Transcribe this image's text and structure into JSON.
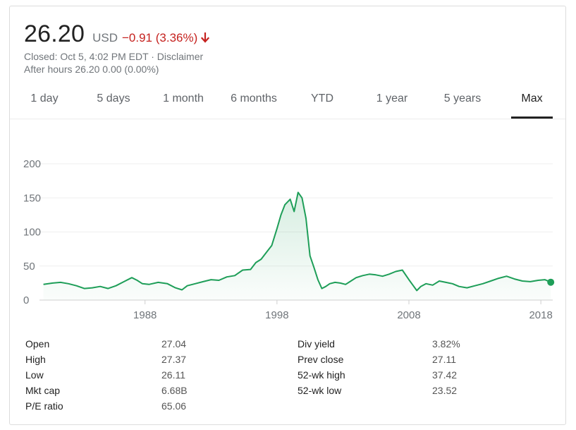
{
  "quote": {
    "price": "26.20",
    "currency": "USD",
    "change": "−0.91 (3.36%)",
    "closed_text": "Closed: Oct 5, 4:02 PM EDT · Disclaimer",
    "after_hours_text": "After hours 26.20 0.00 (0.00%)",
    "down_color": "#c5221f",
    "arrow_icon": "down-arrow-icon"
  },
  "tabs": [
    {
      "label": "1 day"
    },
    {
      "label": "5 days"
    },
    {
      "label": "1 month"
    },
    {
      "label": "6 months"
    },
    {
      "label": "YTD"
    },
    {
      "label": "1 year"
    },
    {
      "label": "5 years"
    },
    {
      "label": "Max",
      "active": true
    }
  ],
  "chart_data": {
    "type": "area",
    "line_color": "#1e9e58",
    "ylim": [
      0,
      200
    ],
    "y_ticks": [
      "200",
      "150",
      "100",
      "50",
      "0"
    ],
    "x_ticks": [
      "1988",
      "1998",
      "2008",
      "2018"
    ],
    "x_tick_values": [
      1988,
      1998,
      2008,
      2018
    ],
    "xlim": [
      1980,
      2018.9
    ],
    "grid": true,
    "series": [
      {
        "x": [
          1980.3,
          1981,
          1981.6,
          1982.2,
          1982.8,
          1983.4,
          1984,
          1984.6,
          1985.2,
          1985.8,
          1986.4,
          1987,
          1987.4,
          1987.8,
          1988.3,
          1989,
          1989.7,
          1990.3,
          1990.8,
          1991.2,
          1991.8,
          1992.4,
          1993,
          1993.6,
          1994.2,
          1994.8,
          1995.4,
          1996,
          1996.4,
          1996.8,
          1997.2,
          1997.6,
          1998,
          1998.3,
          1998.6,
          1999,
          1999.3,
          1999.6,
          1999.9,
          2000.2,
          2000.5,
          2000.8,
          2001.1,
          2001.4,
          2001.7,
          2002,
          2002.4,
          2002.8,
          2003.2,
          2003.6,
          2004,
          2004.5,
          2005,
          2005.5,
          2006,
          2006.5,
          2007,
          2007.5,
          2008,
          2008.3,
          2008.6,
          2008.9,
          2009.3,
          2009.8,
          2010.3,
          2010.8,
          2011.3,
          2011.8,
          2012.4,
          2013,
          2013.6,
          2014.2,
          2014.8,
          2015.4,
          2016,
          2016.6,
          2017.2,
          2017.8,
          2018.3,
          2018.75
        ],
        "y": [
          23,
          25,
          26,
          24,
          21,
          17,
          18,
          20,
          17,
          21,
          27,
          33,
          29,
          24,
          23,
          26,
          24,
          18,
          15,
          21,
          24,
          27,
          30,
          29,
          34,
          36,
          44,
          45,
          55,
          60,
          70,
          80,
          105,
          125,
          140,
          148,
          130,
          158,
          150,
          120,
          65,
          48,
          30,
          17,
          20,
          24,
          26,
          25,
          23,
          28,
          33,
          36,
          38,
          37,
          35,
          38,
          42,
          44,
          30,
          22,
          14,
          20,
          24,
          22,
          28,
          26,
          24,
          20,
          18,
          21,
          24,
          28,
          32,
          35,
          31,
          28,
          27,
          29,
          30,
          26.2
        ]
      }
    ]
  },
  "stats": {
    "left": [
      {
        "label": "Open",
        "value": "27.04"
      },
      {
        "label": "High",
        "value": "27.37"
      },
      {
        "label": "Low",
        "value": "26.11"
      },
      {
        "label": "Mkt cap",
        "value": "6.68B"
      },
      {
        "label": "P/E ratio",
        "value": "65.06"
      }
    ],
    "right": [
      {
        "label": "Div yield",
        "value": "3.82%"
      },
      {
        "label": "Prev close",
        "value": "27.11"
      },
      {
        "label": "52-wk high",
        "value": "37.42"
      },
      {
        "label": "52-wk low",
        "value": "23.52"
      }
    ]
  }
}
